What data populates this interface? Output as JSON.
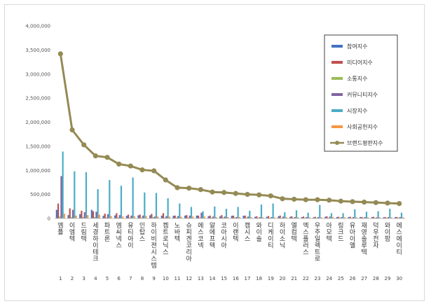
{
  "chart_data": {
    "type": "bar",
    "categories": [
      "엠플",
      "이엠텍",
      "드림텍",
      "세경하이테크",
      "파트론",
      "엠씨넥스",
      "유티아이",
      "인탑스",
      "하이비젼시스템",
      "켐트로닉스",
      "노바텍",
      "슈피겐코리아",
      "에스코넥",
      "알에프텍",
      "코아시아",
      "이랜텍",
      "캠시스",
      "와이솔",
      "디케이티",
      "하이소닉",
      "엘컴텍",
      "엑스플러스",
      "우주일렉트로",
      "아모텍",
      "링크드",
      "유아이엘",
      "재영솔루텍",
      "덕우전자",
      "와이팜",
      "에스에이티"
    ],
    "ranks": [
      "1",
      "2",
      "3",
      "4",
      "5",
      "6",
      "7",
      "8",
      "9",
      "10",
      "11",
      "12",
      "13",
      "14",
      "15",
      "16",
      "17",
      "18",
      "19",
      "20",
      "21",
      "22",
      "23",
      "24",
      "25",
      "26",
      "27",
      "28",
      "29",
      "30"
    ],
    "series": [
      {
        "name": "참여지수",
        "color": "#4472c4",
        "values": [
          180000,
          70000,
          90000,
          180000,
          55000,
          65000,
          55000,
          65000,
          65000,
          60000,
          55000,
          60000,
          60000,
          45000,
          45000,
          55000,
          55000,
          35000,
          35000,
          45000,
          35000,
          30000,
          25000,
          35000,
          30000,
          30000,
          30000,
          30000,
          25000,
          30000
        ]
      },
      {
        "name": "미디어지수",
        "color": "#c0504d",
        "values": [
          310000,
          210000,
          160000,
          150000,
          100000,
          110000,
          80000,
          80000,
          95000,
          110000,
          60000,
          70000,
          60000,
          60000,
          70000,
          60000,
          60000,
          45000,
          50000,
          60000,
          45000,
          40000,
          35000,
          45000,
          35000,
          35000,
          30000,
          35000,
          30000,
          30000
        ]
      },
      {
        "name": "소통지수",
        "color": "#9bbb59",
        "values": [
          40000,
          30000,
          30000,
          30000,
          25000,
          20000,
          20000,
          20000,
          25000,
          20000,
          20000,
          20000,
          20000,
          20000,
          20000,
          20000,
          20000,
          15000,
          15000,
          15000,
          15000,
          15000,
          15000,
          15000,
          15000,
          15000,
          15000,
          15000,
          15000,
          15000
        ]
      },
      {
        "name": "커뮤니티지수",
        "color": "#8064a2",
        "values": [
          880000,
          180000,
          130000,
          140000,
          90000,
          70000,
          60000,
          60000,
          40000,
          50000,
          50000,
          60000,
          120000,
          40000,
          40000,
          30000,
          40000,
          30000,
          30000,
          40000,
          30000,
          30000,
          30000,
          40000,
          30000,
          30000,
          30000,
          25000,
          30000,
          30000
        ]
      },
      {
        "name": "시장지수",
        "color": "#4bacc6",
        "values": [
          1390000,
          980000,
          960000,
          610000,
          800000,
          680000,
          850000,
          540000,
          530000,
          420000,
          310000,
          240000,
          150000,
          250000,
          200000,
          240000,
          160000,
          290000,
          310000,
          130000,
          170000,
          120000,
          280000,
          110000,
          110000,
          190000,
          140000,
          150000,
          200000,
          120000
        ]
      },
      {
        "name": "사회공헌지수",
        "color": "#f79646",
        "values": [
          100000,
          60000,
          70000,
          80000,
          50000,
          40000,
          45000,
          50000,
          40000,
          40000,
          35000,
          40000,
          40000,
          30000,
          30000,
          30000,
          30000,
          25000,
          25000,
          30000,
          25000,
          25000,
          25000,
          30000,
          25000,
          25000,
          25000,
          25000,
          25000,
          25000
        ]
      },
      {
        "name": "브랜드평판지수",
        "color": "#948a54",
        "kind": "line",
        "values": [
          3420000,
          1840000,
          1530000,
          1300000,
          1270000,
          1130000,
          1090000,
          1010000,
          990000,
          800000,
          640000,
          630000,
          600000,
          550000,
          540000,
          520000,
          500000,
          490000,
          470000,
          410000,
          400000,
          390000,
          390000,
          380000,
          360000,
          350000,
          340000,
          330000,
          320000,
          310000
        ]
      }
    ],
    "yticks": [
      "0",
      "500,000",
      "1,000,000",
      "1,500,000",
      "2,000,000",
      "2,500,000",
      "3,000,000",
      "3,500,000",
      "4,000,000"
    ],
    "ylim": [
      0,
      4000000
    ],
    "grid": false,
    "legend": "right"
  }
}
